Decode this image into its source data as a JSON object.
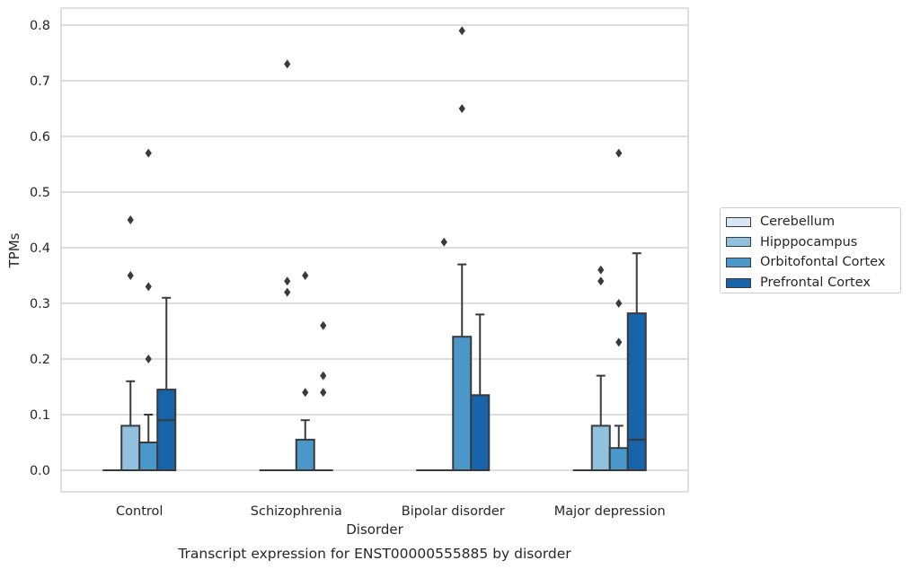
{
  "chart_data": {
    "type": "box",
    "title": "Transcript expression for ENST00000555885 by disorder",
    "xlabel": "Disorder",
    "ylabel": "TPMs",
    "ylim": [
      -0.04,
      0.83
    ],
    "yticks": [
      0.0,
      0.1,
      0.2,
      0.3,
      0.4,
      0.5,
      0.6,
      0.7,
      0.8
    ],
    "ytick_labels": [
      "0.0",
      "0.1",
      "0.2",
      "0.3",
      "0.4",
      "0.5",
      "0.6",
      "0.7",
      "0.8"
    ],
    "grid": "horizontal",
    "legend_position": "right",
    "categories": [
      "Control",
      "Schizophrenia",
      "Bipolar disorder",
      "Major depression"
    ],
    "series": [
      {
        "name": "Cerebellum",
        "color": "#d6e6f4",
        "boxes": [
          {
            "q1": 0,
            "median": 0,
            "q3": 0,
            "whisker_low": 0,
            "whisker_high": 0,
            "outliers": []
          },
          {
            "q1": 0,
            "median": 0,
            "q3": 0,
            "whisker_low": 0,
            "whisker_high": 0,
            "outliers": []
          },
          {
            "q1": 0,
            "median": 0,
            "q3": 0,
            "whisker_low": 0,
            "whisker_high": 0,
            "outliers": []
          },
          {
            "q1": 0,
            "median": 0,
            "q3": 0,
            "whisker_low": 0,
            "whisker_high": 0,
            "outliers": []
          }
        ]
      },
      {
        "name": "Hipppocampus",
        "color": "#92c0df",
        "boxes": [
          {
            "q1": 0,
            "median": 0,
            "q3": 0.08,
            "whisker_low": 0,
            "whisker_high": 0.16,
            "outliers": [
              0.35,
              0.45
            ]
          },
          {
            "q1": 0,
            "median": 0,
            "q3": 0,
            "whisker_low": 0,
            "whisker_high": 0,
            "outliers": [
              0.32,
              0.34,
              0.73
            ]
          },
          {
            "q1": 0,
            "median": 0,
            "q3": 0,
            "whisker_low": 0,
            "whisker_high": 0,
            "outliers": [
              0.41
            ]
          },
          {
            "q1": 0,
            "median": 0,
            "q3": 0.08,
            "whisker_low": 0,
            "whisker_high": 0.17,
            "outliers": [
              0.34,
              0.36
            ]
          }
        ]
      },
      {
        "name": "Orbitofontal Cortex",
        "color": "#4a98c9",
        "boxes": [
          {
            "q1": 0,
            "median": 0,
            "q3": 0.05,
            "whisker_low": 0,
            "whisker_high": 0.1,
            "outliers": [
              0.2,
              0.33,
              0.57
            ]
          },
          {
            "q1": 0,
            "median": 0,
            "q3": 0.055,
            "whisker_low": 0,
            "whisker_high": 0.09,
            "outliers": [
              0.14,
              0.35
            ]
          },
          {
            "q1": 0,
            "median": 0,
            "q3": 0.24,
            "whisker_low": 0,
            "whisker_high": 0.37,
            "outliers": [
              0.65,
              0.79
            ]
          },
          {
            "q1": 0,
            "median": 0,
            "q3": 0.04,
            "whisker_low": 0,
            "whisker_high": 0.08,
            "outliers": [
              0.23,
              0.3,
              0.57
            ]
          }
        ]
      },
      {
        "name": "Prefrontal Cortex",
        "color": "#1764ab",
        "boxes": [
          {
            "q1": 0,
            "median": 0.09,
            "q3": 0.145,
            "whisker_low": 0,
            "whisker_high": 0.31,
            "outliers": []
          },
          {
            "q1": 0,
            "median": 0,
            "q3": 0,
            "whisker_low": 0,
            "whisker_high": 0,
            "outliers": [
              0.14,
              0.17,
              0.26
            ]
          },
          {
            "q1": 0,
            "median": 0,
            "q3": 0.135,
            "whisker_low": 0,
            "whisker_high": 0.28,
            "outliers": []
          },
          {
            "q1": 0,
            "median": 0.055,
            "q3": 0.282,
            "whisker_low": 0,
            "whisker_high": 0.39,
            "outliers": []
          }
        ]
      }
    ]
  }
}
